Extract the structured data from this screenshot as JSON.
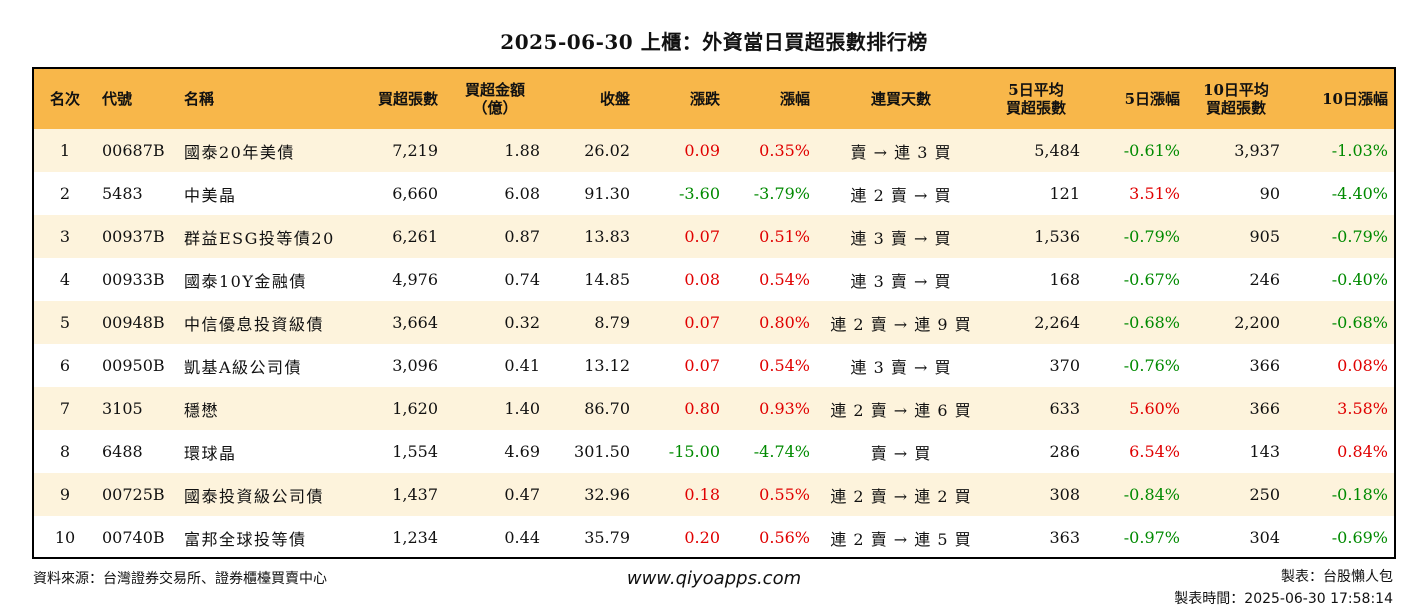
{
  "title": "2025-06-30 上櫃：外資當日買超張數排行榜",
  "headers": {
    "rank": "名次",
    "code": "代號",
    "name": "名稱",
    "net_buy_lots": "買超張數",
    "net_buy_amount_1": "買超金額",
    "net_buy_amount_2": "（億）",
    "close": "收盤",
    "change": "漲跌",
    "change_pct": "漲幅",
    "streak": "連買天數",
    "avg5_1": "5日平均",
    "avg5_2": "買超張數",
    "pct5": "5日漲幅",
    "avg10_1": "10日平均",
    "avg10_2": "買超張數",
    "pct10": "10日漲幅"
  },
  "rows": [
    {
      "rank": "1",
      "code": "00687B",
      "name": "國泰20年美債",
      "lots": "7,219",
      "amount": "1.88",
      "close": "26.02",
      "change": "0.09",
      "change_pct": "0.35%",
      "streak": "賣 → 連 3 買",
      "avg5": "5,484",
      "pct5": "-0.61%",
      "avg10": "3,937",
      "pct10": "-1.03%"
    },
    {
      "rank": "2",
      "code": "5483",
      "name": "中美晶",
      "lots": "6,660",
      "amount": "6.08",
      "close": "91.30",
      "change": "-3.60",
      "change_pct": "-3.79%",
      "streak": "連 2 賣 → 買",
      "avg5": "121",
      "pct5": "3.51%",
      "avg10": "90",
      "pct10": "-4.40%"
    },
    {
      "rank": "3",
      "code": "00937B",
      "name": "群益ESG投等債20",
      "lots": "6,261",
      "amount": "0.87",
      "close": "13.83",
      "change": "0.07",
      "change_pct": "0.51%",
      "streak": "連 3 賣 → 買",
      "avg5": "1,536",
      "pct5": "-0.79%",
      "avg10": "905",
      "pct10": "-0.79%"
    },
    {
      "rank": "4",
      "code": "00933B",
      "name": "國泰10Y金融債",
      "lots": "4,976",
      "amount": "0.74",
      "close": "14.85",
      "change": "0.08",
      "change_pct": "0.54%",
      "streak": "連 3 賣 → 買",
      "avg5": "168",
      "pct5": "-0.67%",
      "avg10": "246",
      "pct10": "-0.40%"
    },
    {
      "rank": "5",
      "code": "00948B",
      "name": "中信優息投資級債",
      "lots": "3,664",
      "amount": "0.32",
      "close": "8.79",
      "change": "0.07",
      "change_pct": "0.80%",
      "streak": "連 2 賣 → 連 9 買",
      "avg5": "2,264",
      "pct5": "-0.68%",
      "avg10": "2,200",
      "pct10": "-0.68%"
    },
    {
      "rank": "6",
      "code": "00950B",
      "name": "凱基A級公司債",
      "lots": "3,096",
      "amount": "0.41",
      "close": "13.12",
      "change": "0.07",
      "change_pct": "0.54%",
      "streak": "連 3 賣 → 買",
      "avg5": "370",
      "pct5": "-0.76%",
      "avg10": "366",
      "pct10": "0.08%"
    },
    {
      "rank": "7",
      "code": "3105",
      "name": "穩懋",
      "lots": "1,620",
      "amount": "1.40",
      "close": "86.70",
      "change": "0.80",
      "change_pct": "0.93%",
      "streak": "連 2 賣 → 連 6 買",
      "avg5": "633",
      "pct5": "5.60%",
      "avg10": "366",
      "pct10": "3.58%"
    },
    {
      "rank": "8",
      "code": "6488",
      "name": "環球晶",
      "lots": "1,554",
      "amount": "4.69",
      "close": "301.50",
      "change": "-15.00",
      "change_pct": "-4.74%",
      "streak": "賣 → 買",
      "avg5": "286",
      "pct5": "6.54%",
      "avg10": "143",
      "pct10": "0.84%"
    },
    {
      "rank": "9",
      "code": "00725B",
      "name": "國泰投資級公司債",
      "lots": "1,437",
      "amount": "0.47",
      "close": "32.96",
      "change": "0.18",
      "change_pct": "0.55%",
      "streak": "連 2 賣 → 連 2 買",
      "avg5": "308",
      "pct5": "-0.84%",
      "avg10": "250",
      "pct10": "-0.18%"
    },
    {
      "rank": "10",
      "code": "00740B",
      "name": "富邦全球投等債",
      "lots": "1,234",
      "amount": "0.44",
      "close": "35.79",
      "change": "0.20",
      "change_pct": "0.56%",
      "streak": "連 2 賣 → 連 5 買",
      "avg5": "363",
      "pct5": "-0.97%",
      "avg10": "304",
      "pct10": "-0.69%"
    }
  ],
  "footer": {
    "source": "資料來源：台灣證券交易所、證券櫃檯買賣中心",
    "website": "www.qiyoapps.com",
    "maker": "製表：台股懶人包",
    "time": "製表時間：2025-06-30 17:58:14"
  },
  "colors": {
    "header_bg": "#f8b74a",
    "stripe_bg": "#fdf3dc",
    "up": "#e00000",
    "down": "#008a00"
  }
}
